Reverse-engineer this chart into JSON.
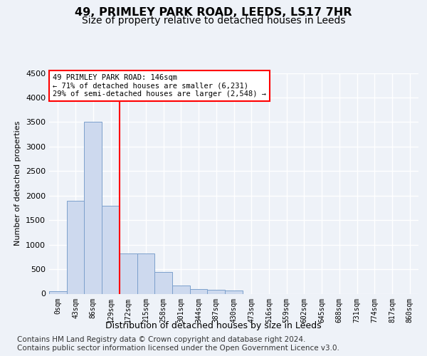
{
  "title_line1": "49, PRIMLEY PARK ROAD, LEEDS, LS17 7HR",
  "title_line2": "Size of property relative to detached houses in Leeds",
  "xlabel": "Distribution of detached houses by size in Leeds",
  "ylabel": "Number of detached properties",
  "bin_labels": [
    "0sqm",
    "43sqm",
    "86sqm",
    "129sqm",
    "172sqm",
    "215sqm",
    "258sqm",
    "301sqm",
    "344sqm",
    "387sqm",
    "430sqm",
    "473sqm",
    "516sqm",
    "559sqm",
    "602sqm",
    "645sqm",
    "688sqm",
    "731sqm",
    "774sqm",
    "817sqm",
    "860sqm"
  ],
  "bar_heights": [
    50,
    1900,
    3500,
    1800,
    820,
    820,
    450,
    160,
    100,
    80,
    60,
    0,
    0,
    0,
    0,
    0,
    0,
    0,
    0,
    0,
    0
  ],
  "bar_color": "#cdd9ee",
  "bar_edge_color": "#7ca0cc",
  "vline_x": 3.5,
  "vline_color": "red",
  "annotation_text": "49 PRIMLEY PARK ROAD: 146sqm\n← 71% of detached houses are smaller (6,231)\n29% of semi-detached houses are larger (2,548) →",
  "annotation_box_color": "white",
  "annotation_box_edge_color": "red",
  "ylim": [
    0,
    4500
  ],
  "yticks": [
    0,
    500,
    1000,
    1500,
    2000,
    2500,
    3000,
    3500,
    4000,
    4500
  ],
  "footer_line1": "Contains HM Land Registry data © Crown copyright and database right 2024.",
  "footer_line2": "Contains public sector information licensed under the Open Government Licence v3.0.",
  "bg_color": "#eef2f8",
  "plot_bg_color": "#eef2f8",
  "grid_color": "#ffffff",
  "title_fontsize": 11.5,
  "subtitle_fontsize": 10,
  "footer_fontsize": 7.5
}
